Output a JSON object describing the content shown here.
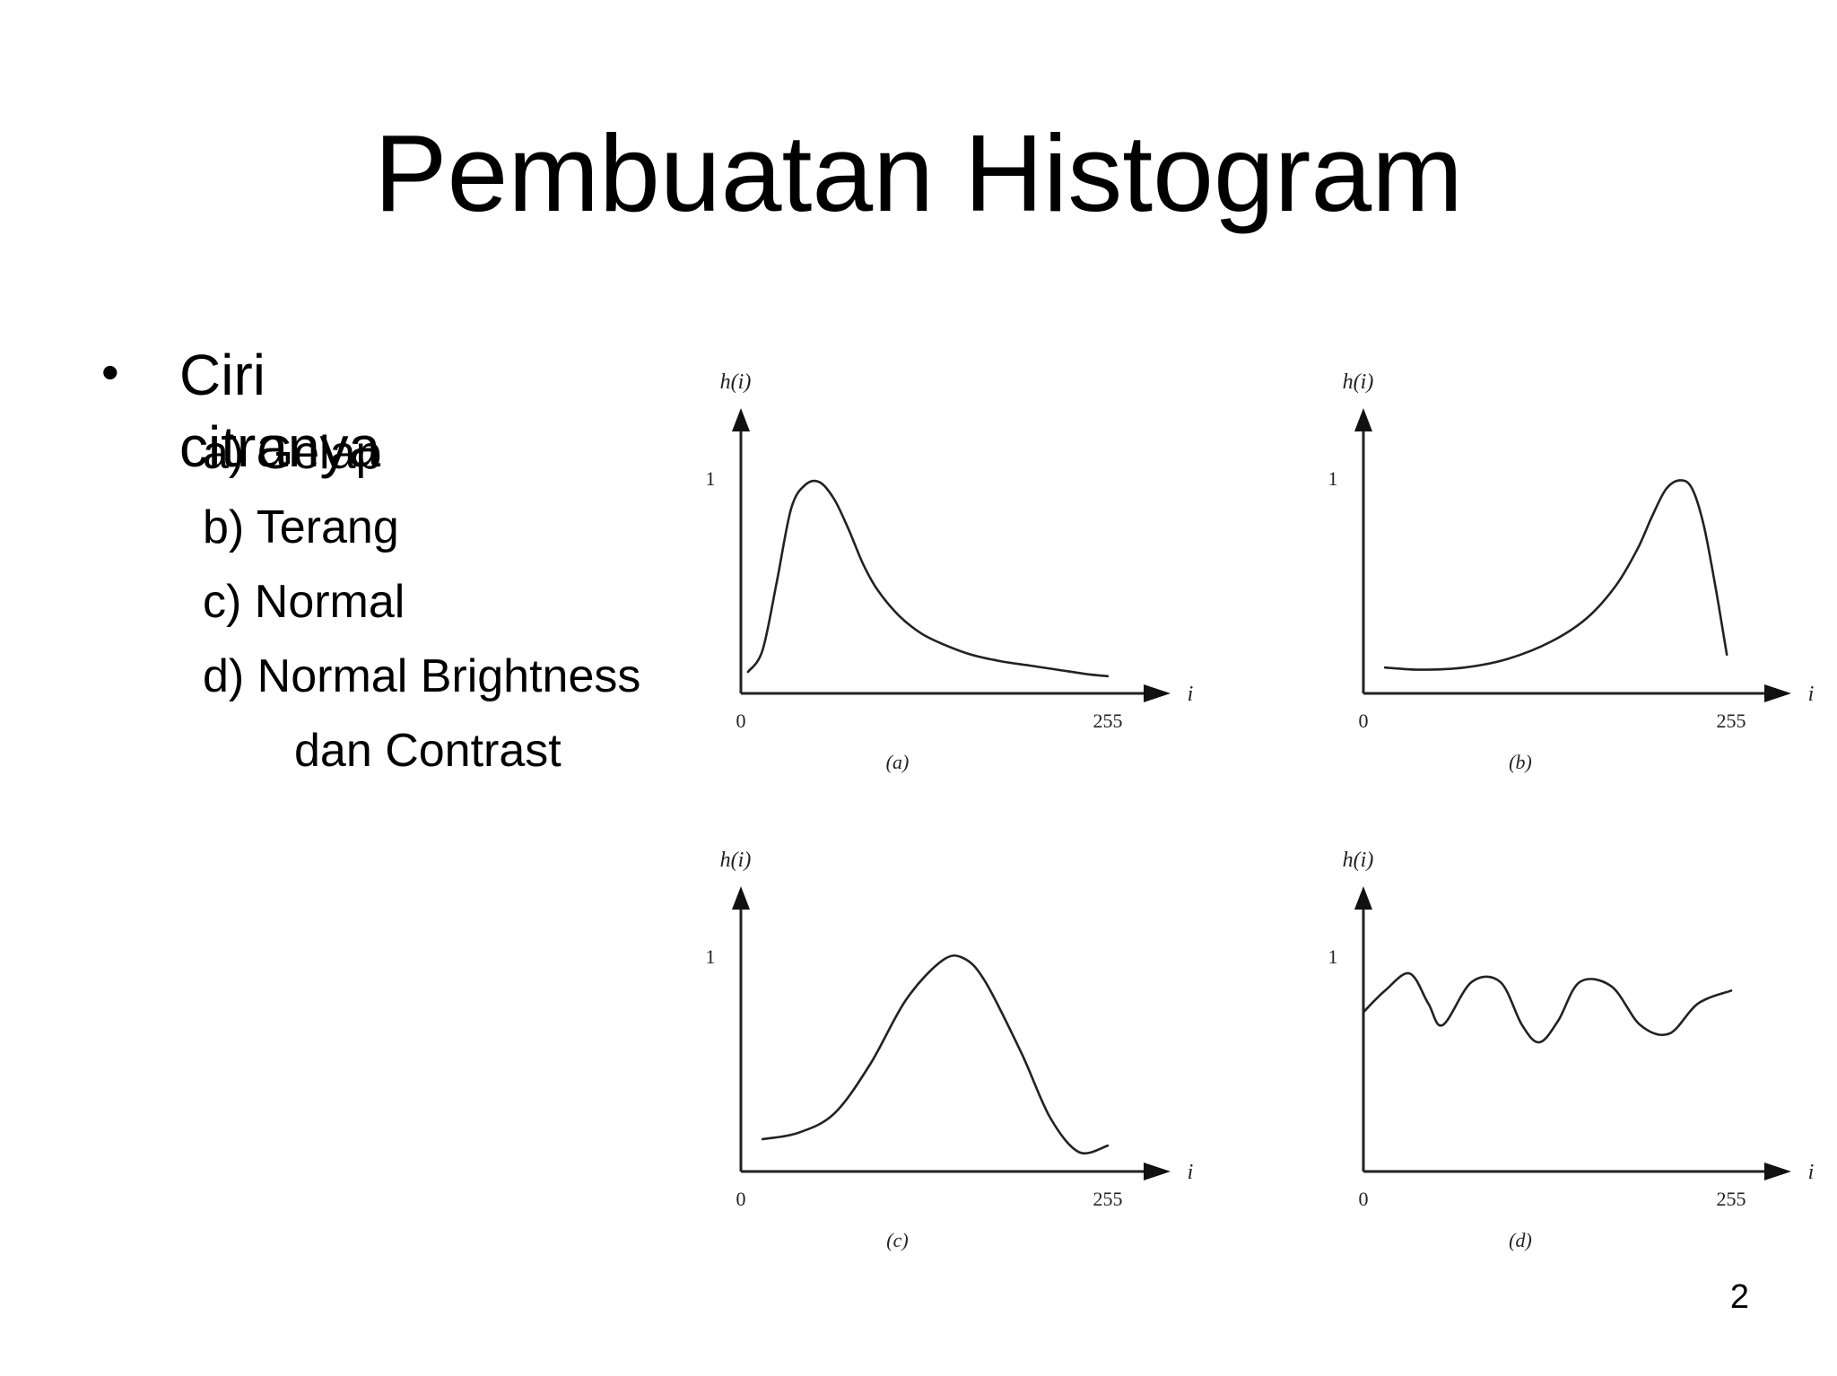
{
  "slide": {
    "title": "Pembuatan Histogram",
    "bullet": "Ciri citranya",
    "sub_items": [
      "a) Gelap",
      "b) Terang",
      "c) Normal",
      "d) Normal Brightness"
    ],
    "sub_item_continuation": "dan Contrast",
    "page_number": "2"
  },
  "chart_data": [
    {
      "type": "line",
      "caption": "(a)",
      "xlabel": "i",
      "ylabel": "h(i)",
      "xlim": [
        0,
        255
      ],
      "ylim": [
        0,
        1
      ],
      "x_ticks": [
        "0",
        "255"
      ],
      "y_ticks": [
        "1"
      ],
      "grid": false,
      "series": [
        {
          "x": [
            5,
            15,
            25,
            35,
            45,
            55,
            65,
            75,
            85,
            95,
            110,
            125,
            140,
            160,
            180,
            200,
            220,
            240,
            255
          ],
          "y": [
            0.1,
            0.2,
            0.52,
            0.86,
            0.97,
            0.98,
            0.9,
            0.76,
            0.6,
            0.48,
            0.36,
            0.28,
            0.23,
            0.18,
            0.15,
            0.13,
            0.11,
            0.09,
            0.08
          ]
        }
      ]
    },
    {
      "type": "line",
      "caption": "(b)",
      "xlabel": "i",
      "ylabel": "h(i)",
      "xlim": [
        0,
        255
      ],
      "ylim": [
        0,
        1
      ],
      "x_ticks": [
        "0",
        "255"
      ],
      "y_ticks": [
        "1"
      ],
      "grid": false,
      "series": [
        {
          "x": [
            15,
            40,
            70,
            100,
            130,
            155,
            175,
            190,
            200,
            210,
            220,
            228,
            236,
            244,
            252
          ],
          "y": [
            0.12,
            0.11,
            0.12,
            0.16,
            0.24,
            0.35,
            0.5,
            0.67,
            0.82,
            0.95,
            0.99,
            0.95,
            0.78,
            0.5,
            0.18
          ]
        }
      ]
    },
    {
      "type": "line",
      "caption": "(c)",
      "xlabel": "i",
      "ylabel": "h(i)",
      "xlim": [
        0,
        255
      ],
      "ylim": [
        0,
        1
      ],
      "x_ticks": [
        "0",
        "255"
      ],
      "y_ticks": [
        "1"
      ],
      "grid": false,
      "series": [
        {
          "x": [
            15,
            40,
            65,
            90,
            115,
            140,
            155,
            170,
            195,
            215,
            235,
            255
          ],
          "y": [
            0.15,
            0.18,
            0.27,
            0.5,
            0.8,
            0.98,
            0.99,
            0.88,
            0.55,
            0.25,
            0.09,
            0.12
          ]
        }
      ]
    },
    {
      "type": "line",
      "caption": "(d)",
      "xlabel": "i",
      "ylabel": "h(i)",
      "xlim": [
        0,
        255
      ],
      "ylim": [
        0,
        1
      ],
      "x_ticks": [
        "0",
        "255"
      ],
      "y_ticks": [
        "1"
      ],
      "grid": false,
      "series": [
        {
          "x": [
            0,
            15,
            32,
            45,
            55,
            75,
            95,
            110,
            122,
            135,
            150,
            172,
            192,
            212,
            232,
            255
          ],
          "y": [
            0.74,
            0.84,
            0.92,
            0.78,
            0.68,
            0.88,
            0.88,
            0.68,
            0.6,
            0.7,
            0.88,
            0.86,
            0.68,
            0.64,
            0.78,
            0.84
          ]
        }
      ]
    }
  ]
}
